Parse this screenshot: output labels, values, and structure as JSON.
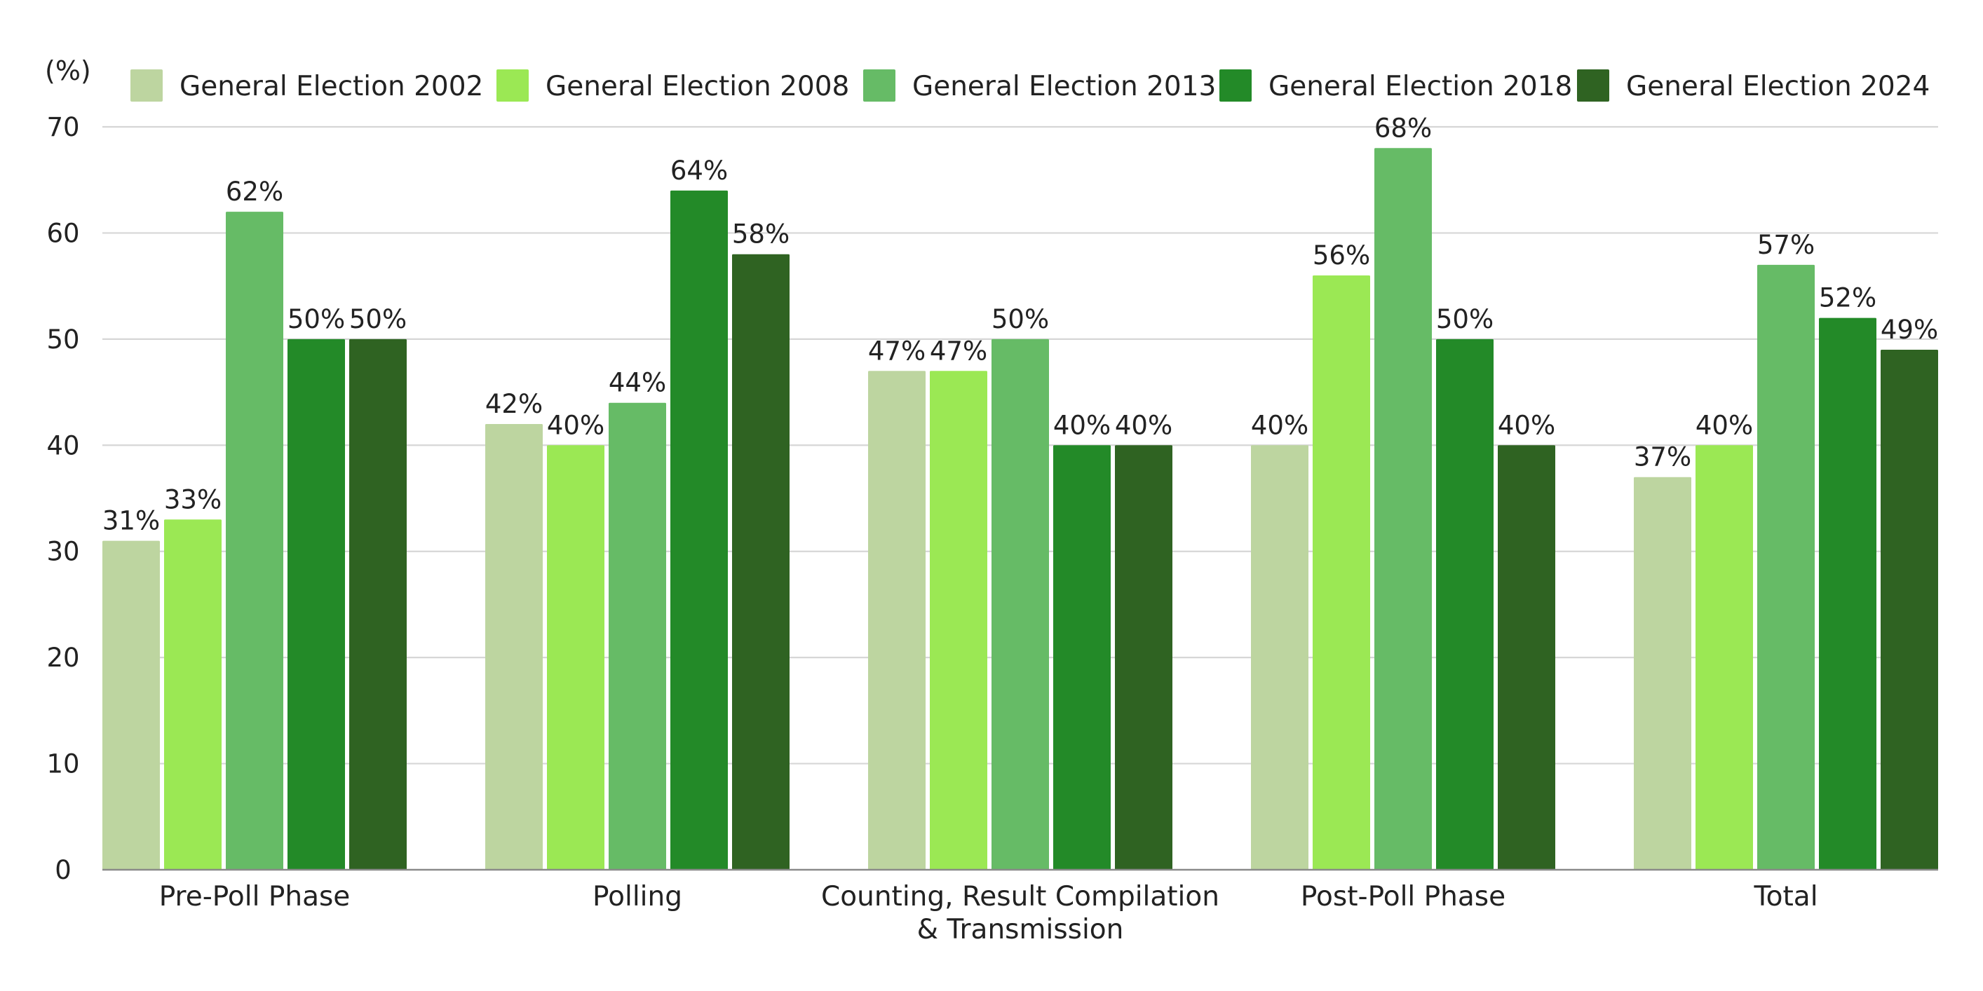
{
  "chart_data": {
    "type": "bar",
    "ylabel": "(%)",
    "ylim": [
      0,
      70
    ],
    "yticks": [
      0,
      10,
      20,
      30,
      40,
      50,
      60,
      70
    ],
    "grid": true,
    "legend_position": "top",
    "categories": [
      [
        "Pre-Poll Phase"
      ],
      [
        "Polling"
      ],
      [
        "Counting, Result Compilation",
        "& Transmission"
      ],
      [
        "Post-Poll Phase"
      ],
      [
        "Total"
      ]
    ],
    "series": [
      {
        "name": "General Election 2002",
        "color": "#bdd5a0",
        "values": [
          31,
          42,
          47,
          40,
          37
        ]
      },
      {
        "name": "General Election 2008",
        "color": "#9be854",
        "values": [
          33,
          40,
          47,
          56,
          40
        ]
      },
      {
        "name": "General Election 2013",
        "color": "#66bb66",
        "values": [
          62,
          44,
          50,
          68,
          57
        ]
      },
      {
        "name": "General Election 2018",
        "color": "#238a28",
        "values": [
          50,
          64,
          40,
          50,
          52
        ]
      },
      {
        "name": "General Election 2024",
        "color": "#2f6322",
        "values": [
          50,
          58,
          40,
          40,
          49
        ]
      }
    ],
    "value_suffix": "%"
  }
}
